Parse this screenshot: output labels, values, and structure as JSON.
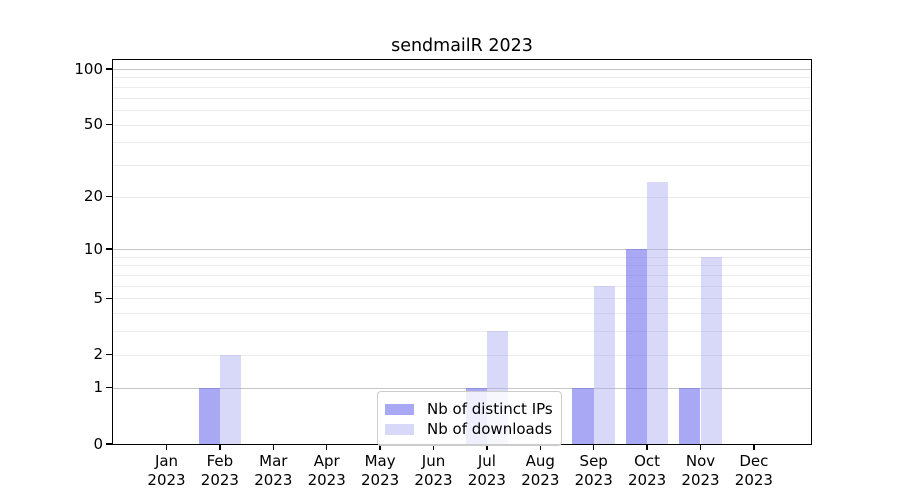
{
  "chart_data": {
    "type": "bar",
    "title": "sendmailR 2023",
    "x_categories": [
      {
        "month": "Jan",
        "year": "2023"
      },
      {
        "month": "Feb",
        "year": "2023"
      },
      {
        "month": "Mar",
        "year": "2023"
      },
      {
        "month": "Apr",
        "year": "2023"
      },
      {
        "month": "May",
        "year": "2023"
      },
      {
        "month": "Jun",
        "year": "2023"
      },
      {
        "month": "Jul",
        "year": "2023"
      },
      {
        "month": "Aug",
        "year": "2023"
      },
      {
        "month": "Sep",
        "year": "2023"
      },
      {
        "month": "Oct",
        "year": "2023"
      },
      {
        "month": "Nov",
        "year": "2023"
      },
      {
        "month": "Dec",
        "year": "2023"
      }
    ],
    "series": [
      {
        "name": "Nb of distinct IPs",
        "color": "rgba(100,100,238,0.56)",
        "values": [
          0,
          1,
          0,
          0,
          0,
          0,
          1,
          0,
          1,
          10,
          1,
          0
        ]
      },
      {
        "name": "Nb of downloads",
        "color": "rgba(168,168,240,0.45)",
        "values": [
          0,
          2,
          0,
          0,
          0,
          0,
          3,
          0,
          6,
          24,
          9,
          0
        ]
      }
    ],
    "y_axis": {
      "scale": "log10(value+1)",
      "min": 0,
      "max": 100,
      "ticks": [
        0,
        1,
        2,
        5,
        10,
        20,
        50,
        100
      ],
      "major_gridlines": [
        1,
        10,
        100
      ],
      "minor_gridlines": [
        2,
        3,
        4,
        5,
        6,
        7,
        8,
        9,
        20,
        30,
        40,
        50,
        60,
        70,
        80,
        90
      ]
    },
    "legend": {
      "position": "bottom-center"
    },
    "colors": {
      "major_grid": "#c6c6c6",
      "minor_grid": "#ececec",
      "spine": "#000000",
      "text": "#000000",
      "background": "#ffffff"
    }
  }
}
